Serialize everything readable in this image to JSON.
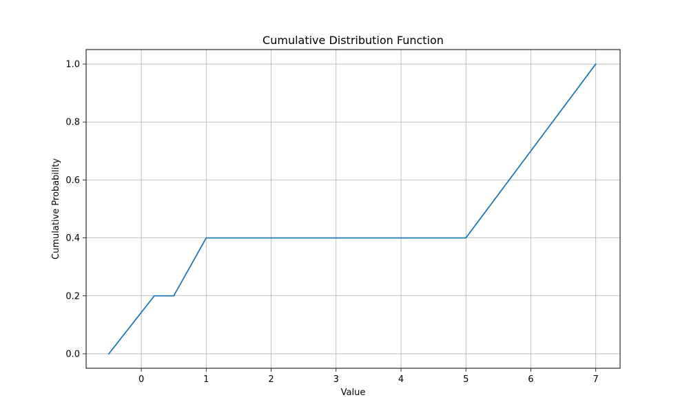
{
  "chart_data": {
    "type": "line",
    "title": "Cumulative Distribution Function",
    "xlabel": "Value",
    "ylabel": "Cumulative Probability",
    "xlim": [
      -0.85,
      7.375
    ],
    "ylim": [
      -0.05,
      1.05
    ],
    "xticks": [
      0,
      1,
      2,
      3,
      4,
      5,
      6,
      7
    ],
    "yticks": [
      0.0,
      0.2,
      0.4,
      0.6,
      0.8,
      1.0
    ],
    "xtick_labels": [
      "0",
      "1",
      "2",
      "3",
      "4",
      "5",
      "6",
      "7"
    ],
    "ytick_labels": [
      "0.0",
      "0.2",
      "0.4",
      "0.6",
      "0.8",
      "1.0"
    ],
    "grid": true,
    "series": [
      {
        "color": "#1f77b4",
        "x": [
          -0.5,
          0.2,
          0.5,
          1.0,
          5.0,
          7.0
        ],
        "y": [
          0.0,
          0.2,
          0.2,
          0.4,
          0.4,
          1.0
        ]
      }
    ]
  }
}
